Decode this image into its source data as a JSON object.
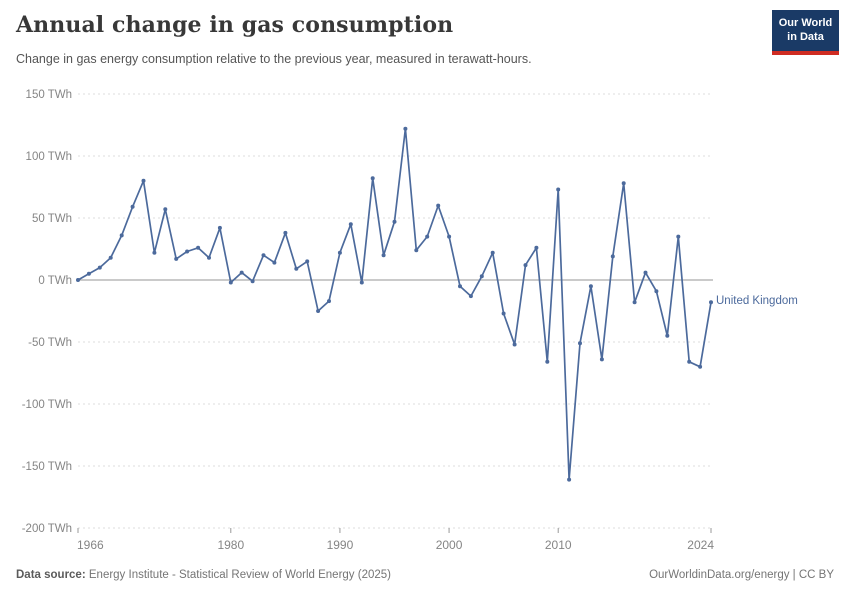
{
  "header": {
    "title": "Annual change in gas consumption",
    "subtitle": "Change in gas energy consumption relative to the previous year, measured in terawatt-hours."
  },
  "logo": {
    "line1": "Our World",
    "line2": "in Data"
  },
  "footer": {
    "source_label": "Data source:",
    "source_text": "Energy Institute - Statistical Review of World Energy (2025)",
    "license_text": "OurWorldinData.org/energy | CC BY"
  },
  "colors": {
    "line": "#4C6A9C",
    "point": "#4C6A9C",
    "entity_label": "#4C6A9C",
    "grid": "#dddddd",
    "zero_line": "#949494",
    "axis_tick": "#999999",
    "tick_label": "#858585"
  },
  "chart_data": {
    "type": "line",
    "title": "Annual change in gas consumption",
    "subtitle": "Change in gas energy consumption relative to the previous year, measured in terawatt-hours.",
    "xlabel": "",
    "ylabel": "",
    "unit": "TWh",
    "grid": true,
    "legend_position": "end-of-line-label",
    "ylim": [
      -200,
      150
    ],
    "xlim": [
      1966,
      2024
    ],
    "yticks": [
      {
        "v": 150,
        "label": "150 TWh"
      },
      {
        "v": 100,
        "label": "100 TWh"
      },
      {
        "v": 50,
        "label": "50 TWh"
      },
      {
        "v": 0,
        "label": "0 TWh"
      },
      {
        "v": -50,
        "label": "-50 TWh"
      },
      {
        "v": -100,
        "label": "-100 TWh"
      },
      {
        "v": -150,
        "label": "-150 TWh"
      },
      {
        "v": -200,
        "label": "-200 TWh"
      }
    ],
    "xticks": [
      {
        "v": 1966,
        "label": "1966"
      },
      {
        "v": 1980,
        "label": "1980"
      },
      {
        "v": 1990,
        "label": "1990"
      },
      {
        "v": 2000,
        "label": "2000"
      },
      {
        "v": 2010,
        "label": "2010"
      },
      {
        "v": 2024,
        "label": "2024"
      }
    ],
    "x": [
      1966,
      1967,
      1968,
      1969,
      1970,
      1971,
      1972,
      1973,
      1974,
      1975,
      1976,
      1977,
      1978,
      1979,
      1980,
      1981,
      1982,
      1983,
      1984,
      1985,
      1986,
      1987,
      1988,
      1989,
      1990,
      1991,
      1992,
      1993,
      1994,
      1995,
      1996,
      1997,
      1998,
      1999,
      2000,
      2001,
      2002,
      2003,
      2004,
      2005,
      2006,
      2007,
      2008,
      2009,
      2010,
      2011,
      2012,
      2013,
      2014,
      2015,
      2016,
      2017,
      2018,
      2019,
      2020,
      2021,
      2022,
      2023,
      2024
    ],
    "series": [
      {
        "name": "United Kingdom",
        "values": [
          0,
          5,
          10,
          18,
          36,
          59,
          80,
          22,
          57,
          17,
          23,
          26,
          18,
          42,
          -2,
          6,
          -1,
          20,
          14,
          38,
          9,
          15,
          -25,
          -17,
          22,
          45,
          -2,
          82,
          20,
          47,
          122,
          24,
          35,
          60,
          35,
          -5,
          -13,
          3,
          22,
          -27,
          -52,
          12,
          26,
          -66,
          73,
          -161,
          -51,
          -5,
          -64,
          19,
          78,
          -18,
          6,
          -9,
          -45,
          35,
          -66,
          -70,
          -18
        ]
      }
    ]
  }
}
